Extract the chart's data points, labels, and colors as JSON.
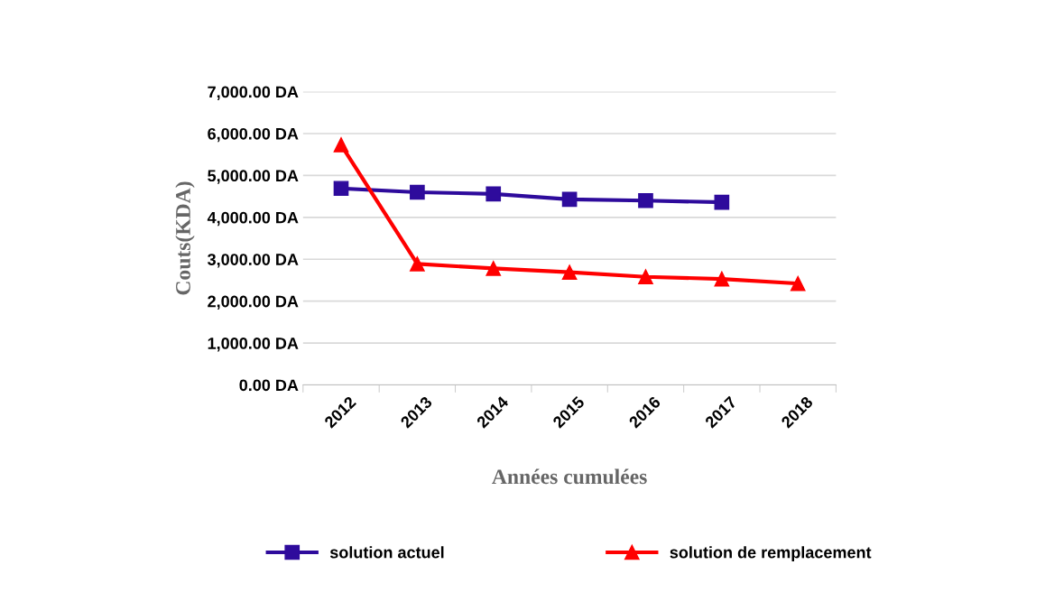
{
  "chart_data": {
    "type": "line",
    "xlabel": "Années cumulées",
    "ylabel": "Couts(KDA)",
    "categories": [
      "2012",
      "2013",
      "2014",
      "2015",
      "2016",
      "2017",
      "2018"
    ],
    "series": [
      {
        "name": "solution actuel",
        "color": "#2e0b9c",
        "marker": "square",
        "values": [
          4690,
          4600,
          4560,
          4430,
          4400,
          4360,
          null
        ]
      },
      {
        "name": "solution de remplacement",
        "color": "#ff0000",
        "marker": "triangle",
        "values": [
          5730,
          2890,
          2780,
          2690,
          2580,
          2530,
          2420
        ]
      }
    ],
    "ylim": [
      0,
      7000
    ],
    "yticks": [
      {
        "value": 0,
        "label": "0.00 DA"
      },
      {
        "value": 1000,
        "label": "1,000.00 DA"
      },
      {
        "value": 2000,
        "label": "2,000.00 DA"
      },
      {
        "value": 3000,
        "label": "3,000.00 DA"
      },
      {
        "value": 4000,
        "label": "4,000.00 DA"
      },
      {
        "value": 5000,
        "label": "5,000.00 DA"
      },
      {
        "value": 6000,
        "label": "6,000.00 DA"
      },
      {
        "value": 7000,
        "label": "7,000.00 DA"
      }
    ],
    "grid": "y",
    "legend": "bottom",
    "line_style": "solid"
  }
}
